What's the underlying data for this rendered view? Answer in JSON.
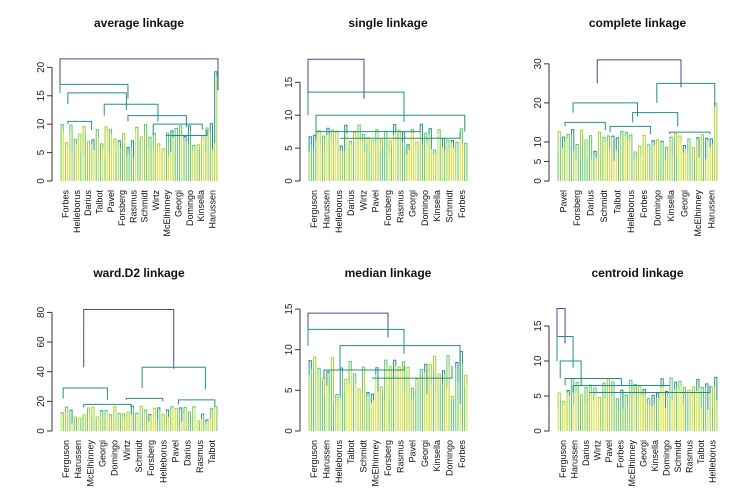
{
  "colors": {
    "palette": [
      "#440154",
      "#3B528B",
      "#21908C",
      "#5DC863",
      "#A8D02F",
      "#D5E21F"
    ],
    "axis": "#333333",
    "text": "#111111"
  },
  "chart_data": [
    {
      "type": "dendrogram",
      "title": "average linkage",
      "ylim": [
        0,
        22
      ],
      "yticks": [
        0,
        5,
        10,
        15,
        20
      ],
      "root_height": 21.5,
      "leaf_count": 72,
      "leaf_height_range": [
        4,
        9
      ],
      "top_merges": [
        {
          "height": 21.5,
          "span": [
            0.0,
            1.0
          ]
        },
        {
          "height": 17.0,
          "span": [
            0.0,
            0.43
          ]
        },
        {
          "height": 15.5,
          "span": [
            0.05,
            0.42
          ]
        },
        {
          "height": 13.5,
          "span": [
            0.28,
            0.62
          ]
        },
        {
          "height": 11.5,
          "span": [
            0.43,
            0.8
          ]
        },
        {
          "height": 10.5,
          "span": [
            0.05,
            0.2
          ]
        },
        {
          "height": 10.0,
          "span": [
            0.59,
            0.9
          ]
        },
        {
          "height": 8.0,
          "span": [
            0.67,
            0.93
          ]
        }
      ],
      "outliers": [
        {
          "position": 1.0,
          "height": 18.5
        }
      ],
      "labels": [
        "Forbes",
        "Helleborus",
        "Darius",
        "Talbot",
        "Pavel",
        "Forsberg",
        "Rasmus",
        "Schmidt",
        "Wirtz",
        "McElhinney",
        "Georgi",
        "Domingo",
        "Kinsella",
        "Harussen"
      ]
    },
    {
      "type": "dendrogram",
      "title": "single linkage",
      "ylim": [
        0,
        19
      ],
      "yticks": [
        0,
        5,
        10,
        15
      ],
      "root_height": 18.5,
      "leaf_count": 72,
      "leaf_height_range": [
        4,
        7.5
      ],
      "top_merges": [
        {
          "height": 18.5,
          "span": [
            0.0,
            0.35
          ]
        },
        {
          "height": 13.5,
          "span": [
            0.0,
            0.6
          ]
        },
        {
          "height": 10.0,
          "span": [
            0.05,
            0.98
          ]
        },
        {
          "height": 7.5,
          "span": [
            0.05,
            0.7
          ]
        },
        {
          "height": 6.5,
          "span": [
            0.2,
            0.95
          ]
        }
      ],
      "outliers": [],
      "labels": [
        "Ferguson",
        "Harussen",
        "Helleborus",
        "Darius",
        "Wirtz",
        "Pavel",
        "Forsberg",
        "Rasmus",
        "Georgi",
        "Domingo",
        "Kinsella",
        "Schmidt",
        "Forbes"
      ]
    },
    {
      "type": "dendrogram",
      "title": "complete linkage",
      "ylim": [
        0,
        32
      ],
      "yticks": [
        0,
        5,
        10,
        20,
        30
      ],
      "root_height": 31,
      "leaf_count": 72,
      "leaf_height_range": [
        5,
        12
      ],
      "top_merges": [
        {
          "height": 31.0,
          "span": [
            0.25,
            0.77
          ]
        },
        {
          "height": 25.0,
          "span": [
            0.62,
            0.98
          ]
        },
        {
          "height": 20.0,
          "span": [
            0.1,
            0.5
          ]
        },
        {
          "height": 17.5,
          "span": [
            0.47,
            0.75
          ]
        },
        {
          "height": 15.0,
          "span": [
            0.05,
            0.3
          ]
        },
        {
          "height": 14.0,
          "span": [
            0.33,
            0.58
          ]
        },
        {
          "height": 12.5,
          "span": [
            0.7,
            0.95
          ]
        }
      ],
      "outliers": [
        {
          "position": 1.0,
          "height": 18.5
        }
      ],
      "labels": [
        "Pavel",
        "Forsberg",
        "Darius",
        "Schmidt",
        "Talbot",
        "Helleborus",
        "Forbes",
        "Domingo",
        "Kinsella",
        "Georgi",
        "McElhinney",
        "Harussen"
      ]
    },
    {
      "type": "dendrogram",
      "title": "ward.D2 linkage",
      "ylim": [
        0,
        85
      ],
      "yticks": [
        0,
        20,
        40,
        60,
        80
      ],
      "root_height": 82,
      "leaf_count": 72,
      "leaf_height_range": [
        5,
        16
      ],
      "top_merges": [
        {
          "height": 82.0,
          "span": [
            0.15,
            0.72
          ]
        },
        {
          "height": 43.0,
          "span": [
            0.52,
            0.92
          ]
        },
        {
          "height": 29.0,
          "span": [
            0.02,
            0.3
          ]
        },
        {
          "height": 22.0,
          "span": [
            0.42,
            0.65
          ]
        },
        {
          "height": 21.0,
          "span": [
            0.75,
            0.98
          ]
        },
        {
          "height": 18.0,
          "span": [
            0.15,
            0.45
          ]
        }
      ],
      "outliers": [],
      "labels": [
        "Ferguson",
        "Harussen",
        "McElhinney",
        "Georgi",
        "Domingo",
        "Wirtz",
        "Schmidt",
        "Forsberg",
        "Helleborus",
        "Pavel",
        "Darius",
        "Rasmus",
        "Talbot"
      ]
    },
    {
      "type": "dendrogram",
      "title": "median linkage",
      "ylim": [
        0,
        15.5
      ],
      "yticks": [
        0,
        5,
        10,
        15
      ],
      "root_height": 14.5,
      "leaf_count": 72,
      "leaf_height_range": [
        3,
        8
      ],
      "top_merges": [
        {
          "height": 14.5,
          "span": [
            0.0,
            0.5
          ]
        },
        {
          "height": 12.5,
          "span": [
            0.0,
            0.6
          ]
        },
        {
          "height": 10.5,
          "span": [
            0.2,
            0.95
          ]
        },
        {
          "height": 7.5,
          "span": [
            0.1,
            0.6
          ]
        },
        {
          "height": 6.5,
          "span": [
            0.4,
            0.9
          ]
        }
      ],
      "outliers": [
        {
          "position": 0.97,
          "height": 8.3
        }
      ],
      "labels": [
        "Ferguson",
        "Harussen",
        "Helleborus",
        "Talbot",
        "Schmidt",
        "McElhinney",
        "Forsberg",
        "Rasmus",
        "Pavel",
        "Georgi",
        "Kinsella",
        "Domingo",
        "Forbes"
      ]
    },
    {
      "type": "dendrogram",
      "title": "centroid linkage",
      "ylim": [
        0,
        18
      ],
      "yticks": [
        0,
        5,
        10,
        15
      ],
      "root_height": 17.5,
      "leaf_count": 72,
      "leaf_height_range": [
        3,
        6.5
      ],
      "top_merges": [
        {
          "height": 17.5,
          "span": [
            0.0,
            0.05
          ]
        },
        {
          "height": 13.5,
          "span": [
            0.0,
            0.1
          ]
        },
        {
          "height": 10.0,
          "span": [
            0.02,
            0.15
          ]
        },
        {
          "height": 7.5,
          "span": [
            0.05,
            0.4
          ]
        },
        {
          "height": 6.5,
          "span": [
            0.1,
            0.7
          ]
        },
        {
          "height": 5.5,
          "span": [
            0.2,
            0.95
          ]
        }
      ],
      "outliers": [],
      "labels": [
        "Ferguson",
        "Harussen",
        "Darius",
        "Wirtz",
        "Pavel",
        "Forbes",
        "McElhinney",
        "Georgi",
        "Kinsella",
        "Domingo",
        "Schmidt",
        "Rasmus",
        "Talbot",
        "Helleborus"
      ]
    }
  ]
}
